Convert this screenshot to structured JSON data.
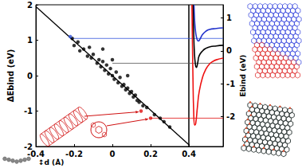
{
  "chart_data": [
    {
      "type": "scatter",
      "ylabel": "ΔEbind (eV)",
      "xlabel": "↕d (Å)",
      "xlim": [
        -0.4,
        0.4
      ],
      "xticks": [
        -0.4,
        -0.2,
        0,
        0.2,
        0.4
      ],
      "ylim": [
        -2,
        2
      ],
      "yticks": [
        -2,
        -1,
        0,
        1,
        2
      ],
      "grid": false,
      "series": [
        {
          "type": "scatter",
          "color": "#000000",
          "x": [
            -0.21,
            -0.2,
            -0.18,
            -0.17,
            -0.15,
            -0.13,
            -0.12,
            -0.11,
            -0.1,
            -0.08,
            -0.07,
            -0.06,
            -0.05,
            -0.05,
            -0.04,
            -0.03,
            -0.02,
            -0.01,
            0.0,
            0.0,
            0.01,
            0.02,
            0.03,
            0.04,
            0.05,
            0.06,
            0.07,
            0.08,
            0.08,
            0.09,
            0.1,
            0.11,
            0.12,
            0.13,
            0.14,
            0.16,
            0.18,
            0.22,
            0.25,
            0.27,
            0.3
          ],
          "values": [
            1.05,
            0.85,
            0.95,
            0.7,
            0.75,
            0.55,
            0.8,
            0.5,
            0.6,
            0.35,
            0.45,
            0.25,
            0.4,
            0.75,
            0.15,
            0.3,
            0.05,
            0.2,
            0.0,
            0.45,
            -0.1,
            0.1,
            -0.2,
            -0.05,
            -0.3,
            -0.25,
            -0.4,
            -0.35,
            0.0,
            -0.5,
            -0.45,
            -0.6,
            -0.55,
            -0.7,
            -0.75,
            -0.85,
            -0.9,
            -1.1,
            -1.2,
            -1.3,
            -1.45
          ]
        },
        {
          "type": "scatter",
          "color": "#3355dd",
          "x": [
            -0.22
          ],
          "values": [
            1.1
          ]
        },
        {
          "type": "scatter",
          "color": "#e01010",
          "x": [
            0.15,
            0.2
          ],
          "values": [
            -1.0,
            -1.2
          ]
        },
        {
          "type": "line",
          "color": "#000000",
          "x": [
            -0.4,
            0.4
          ],
          "values": [
            1.95,
            -1.95
          ]
        }
      ],
      "reference_lines": [
        {
          "x": -0.22,
          "y": 1.05,
          "color": "#3355dd"
        },
        {
          "x": 0.0,
          "y": 0.35,
          "color": "#555555"
        },
        {
          "x": 0.2,
          "y": -1.2,
          "color": "#e01010"
        }
      ]
    },
    {
      "type": "line",
      "ylabel": "Ebind (eV)",
      "xlim": [
        0,
        10
      ],
      "xticks": [],
      "ylim": [
        -2.9,
        1.4
      ],
      "yticks": [
        -2,
        -1,
        0,
        1
      ],
      "tick_labels": "y",
      "grid": false,
      "series": [
        {
          "color": "#2233cc",
          "x": [
            1.5,
            1.7,
            2,
            2.4,
            2.8,
            3.2,
            4,
            5,
            6,
            8,
            10
          ],
          "values": [
            1.4,
            0.9,
            0.55,
            0.35,
            0.3,
            0.35,
            0.5,
            0.6,
            0.65,
            0.68,
            0.7
          ]
        },
        {
          "color": "#000000",
          "x": [
            1.2,
            1.4,
            1.6,
            1.9,
            2.2,
            2.6,
            3,
            4,
            5,
            6,
            8,
            10
          ],
          "values": [
            1.4,
            0.6,
            0,
            -0.4,
            -0.5,
            -0.35,
            -0.15,
            0,
            0.08,
            0.12,
            0.15,
            0.17
          ]
        },
        {
          "color": "#ee1111",
          "x": [
            0.9,
            1.0,
            1.2,
            1.4,
            1.7,
            2.0,
            2.5,
            3,
            4,
            5,
            6,
            7,
            8,
            10
          ],
          "values": [
            1.4,
            0.6,
            -0.8,
            -1.8,
            -2.25,
            -2.2,
            -1.7,
            -1.25,
            -0.8,
            -0.55,
            -0.4,
            -0.32,
            -0.27,
            -0.22
          ]
        }
      ]
    }
  ]
}
